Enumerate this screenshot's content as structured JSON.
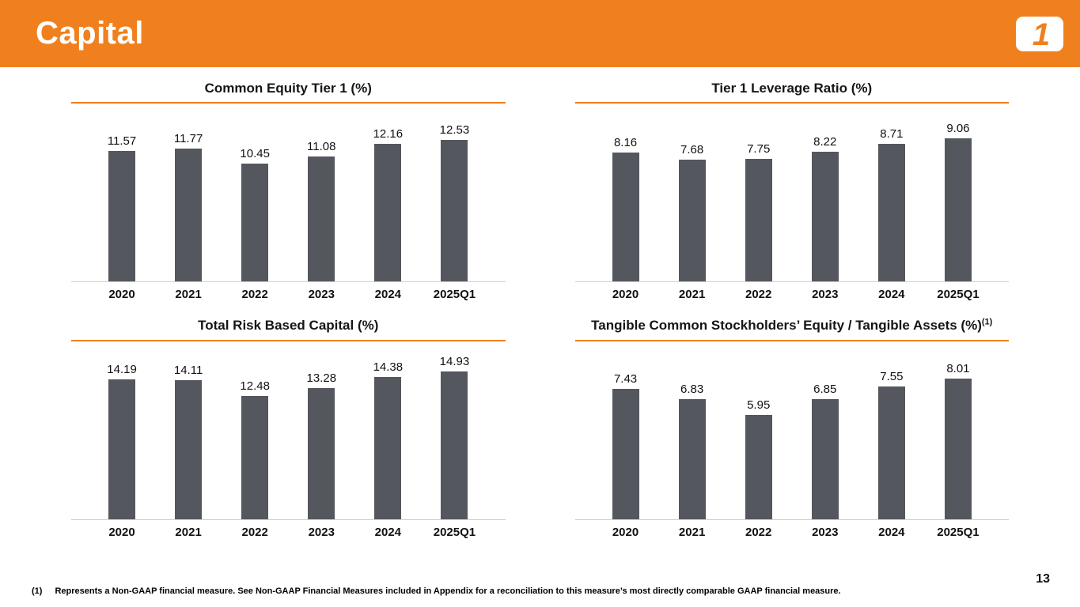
{
  "header": {
    "title": "Capital",
    "logo": "company-logo-one"
  },
  "colors": {
    "accent_orange": "#F0801E",
    "bar_gray": "#54575D",
    "baseline_gray": "#CFCFCF"
  },
  "chart_data": [
    {
      "type": "bar",
      "title": "Common Equity Tier 1 (%)",
      "categories": [
        "2020",
        "2021",
        "2022",
        "2023",
        "2024",
        "2025Q1"
      ],
      "values": [
        11.57,
        11.77,
        10.45,
        11.08,
        12.16,
        12.53
      ],
      "ylim": [
        0,
        14
      ],
      "grid": false,
      "value_labels": true,
      "legend": "none"
    },
    {
      "type": "bar",
      "title": "Tier 1 Leverage Ratio (%)",
      "categories": [
        "2020",
        "2021",
        "2022",
        "2023",
        "2024",
        "2025Q1"
      ],
      "values": [
        8.16,
        7.68,
        7.75,
        8.22,
        8.71,
        9.06
      ],
      "ylim": [
        0,
        10
      ],
      "grid": false,
      "value_labels": true,
      "legend": "none"
    },
    {
      "type": "bar",
      "title": "Total Risk Based Capital (%)",
      "categories": [
        "2020",
        "2021",
        "2022",
        "2023",
        "2024",
        "2025Q1"
      ],
      "values": [
        14.19,
        14.11,
        12.48,
        13.28,
        14.38,
        14.93
      ],
      "ylim": [
        0,
        16
      ],
      "grid": false,
      "value_labels": true,
      "legend": "none"
    },
    {
      "type": "bar",
      "title": "Tangible Common Stockholders’ Equity / Tangible Assets (%)",
      "title_sup": "(1)",
      "categories": [
        "2020",
        "2021",
        "2022",
        "2023",
        "2024",
        "2025Q1"
      ],
      "values": [
        7.43,
        6.83,
        5.95,
        6.85,
        7.55,
        8.01
      ],
      "ylim": [
        0,
        9
      ],
      "grid": false,
      "value_labels": true,
      "legend": "none"
    }
  ],
  "footnote": {
    "marker": "(1)",
    "text": "Represents a Non-GAAP financial measure. See Non-GAAP Financial Measures included in Appendix for a reconciliation to this measure’s most directly comparable GAAP financial measure."
  },
  "page_number": "13"
}
